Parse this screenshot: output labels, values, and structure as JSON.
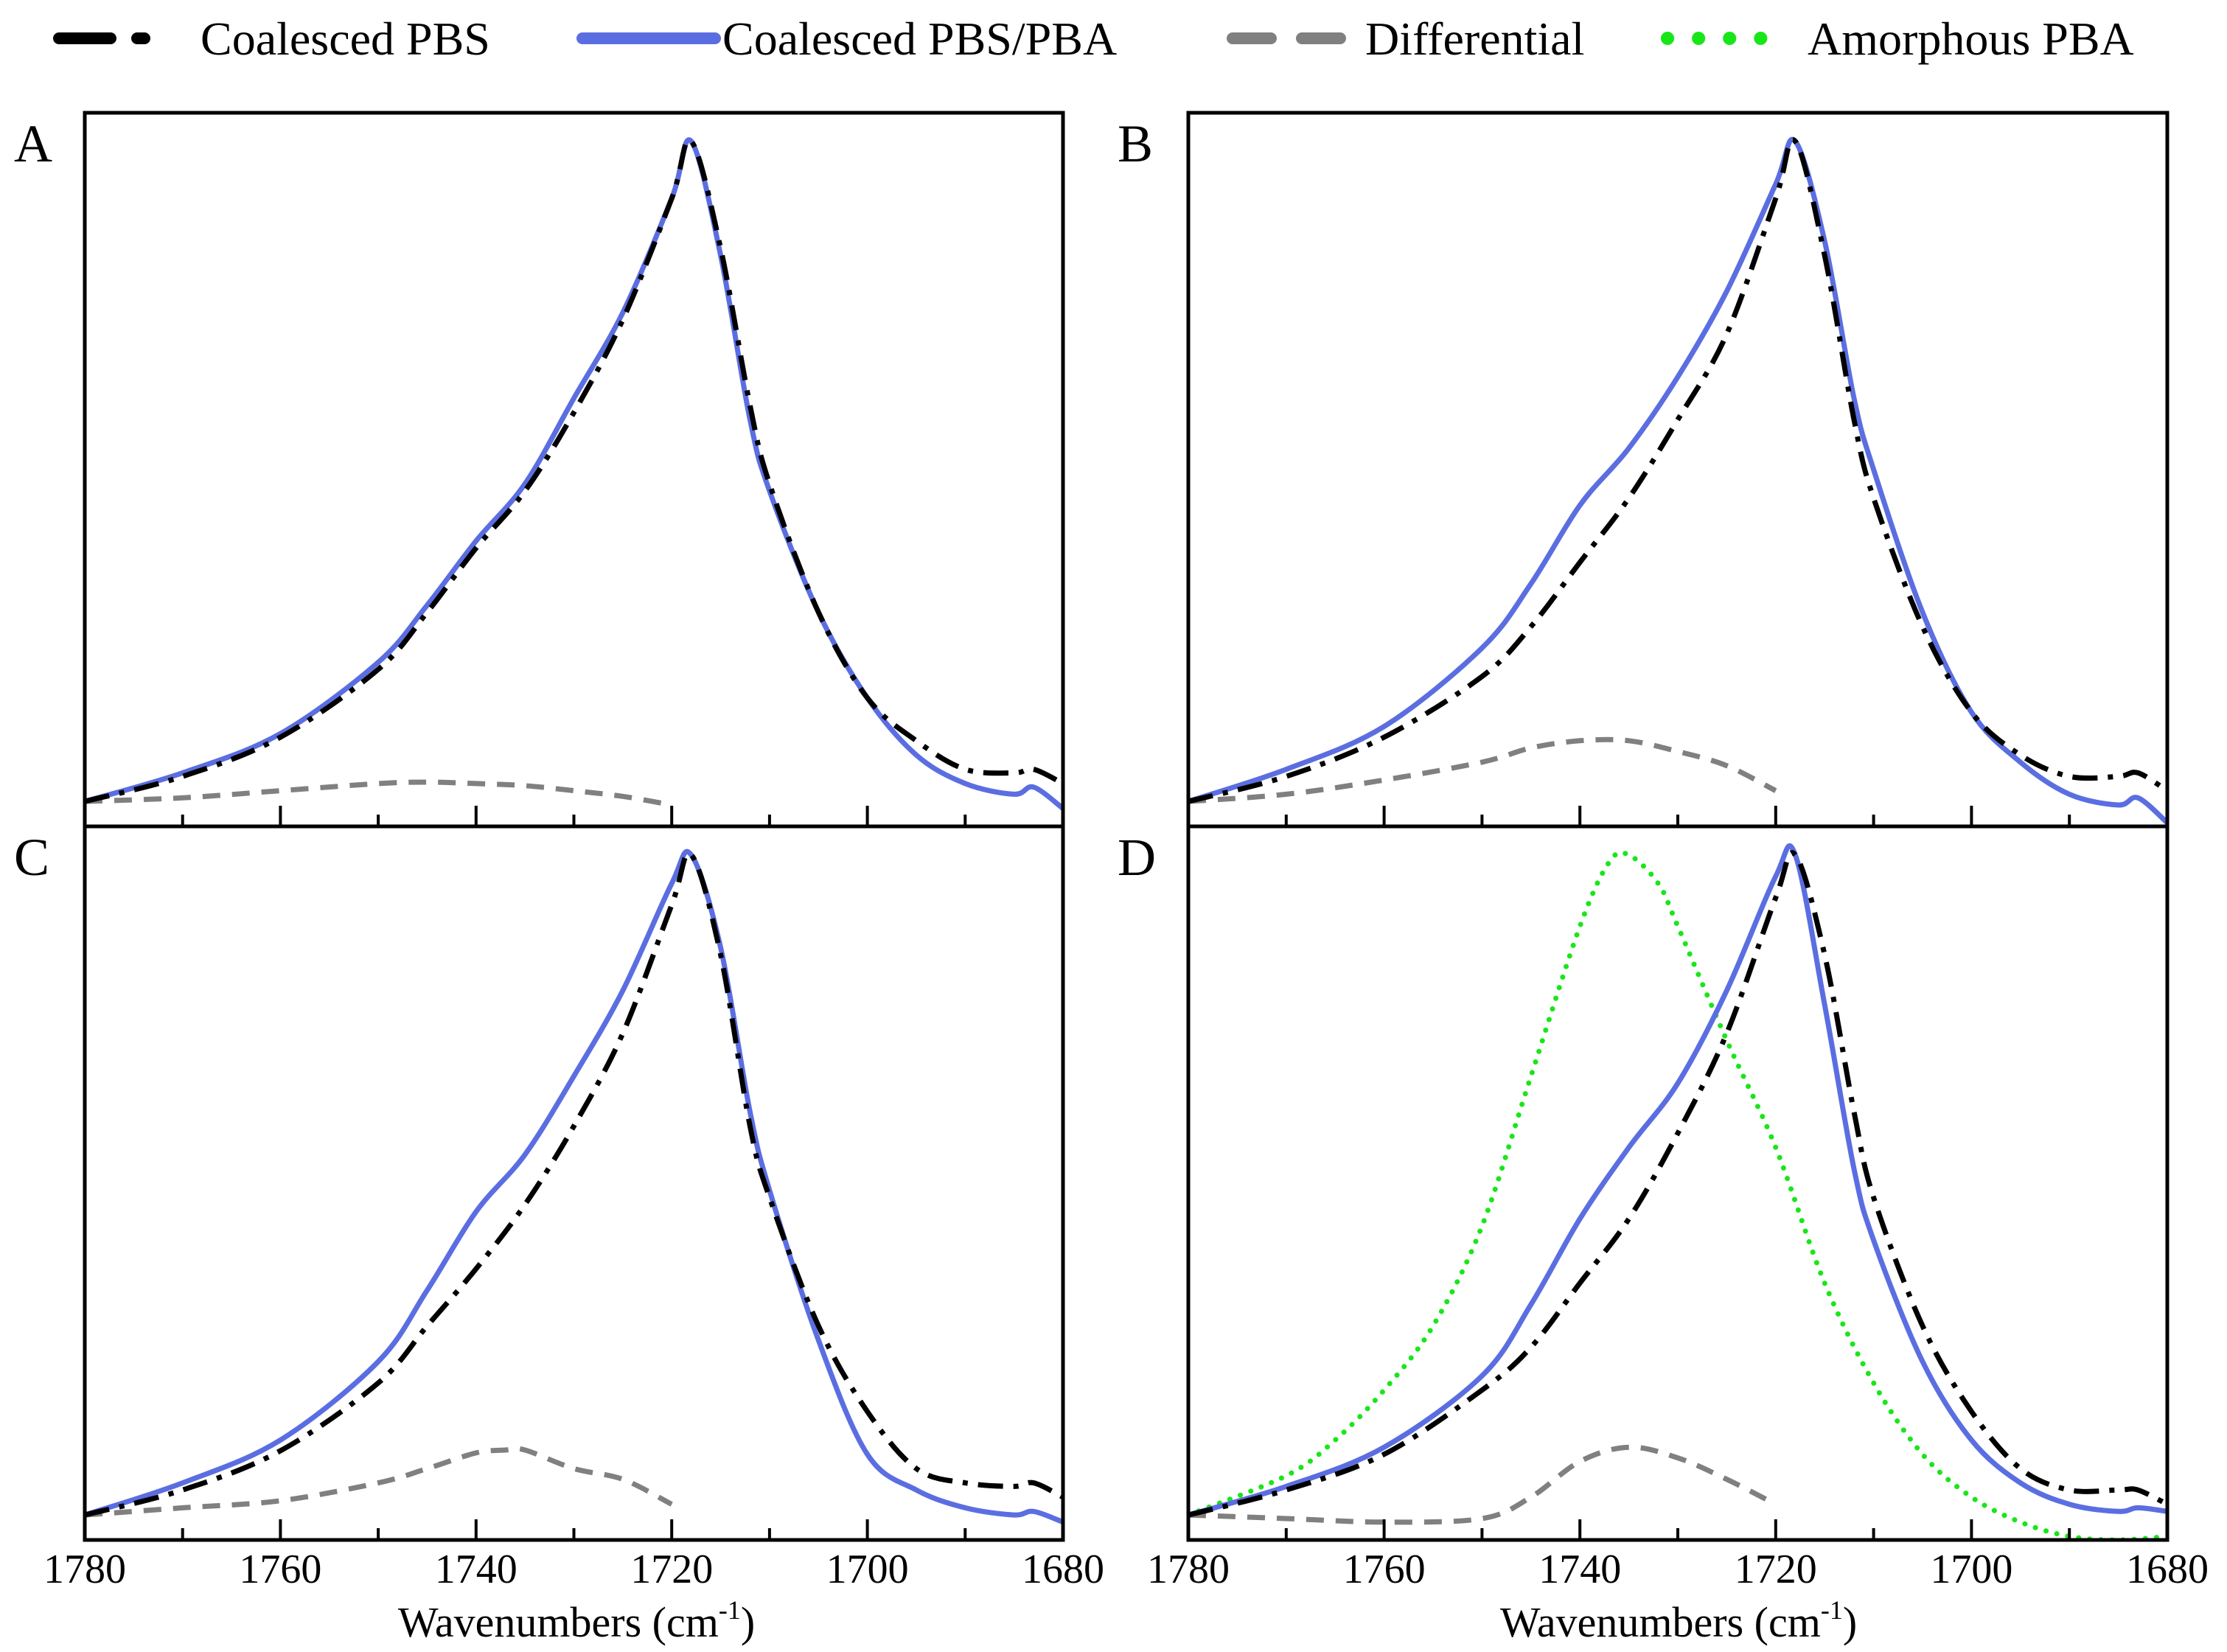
{
  "legend": [
    {
      "name": "Coalesced PBS",
      "color": "#000000",
      "style": "dashdot"
    },
    {
      "name": "Coalesced PBS/PBA",
      "color": "#5b6ee1",
      "style": "solid"
    },
    {
      "name": "Differential",
      "color": "#808080",
      "style": "dashed"
    },
    {
      "name": "Amorphous PBA",
      "color": "#19e619",
      "style": "dotted"
    }
  ],
  "axis": {
    "xlabel_main": "Wavenumbers (cm",
    "xlabel_sup": "-1",
    "xlabel_close": ")",
    "ticks": [
      "1780",
      "1760",
      "1740",
      "1720",
      "1700",
      "1680"
    ]
  },
  "chart_data": [
    {
      "panel": "A",
      "type": "line",
      "xlabel": "Wavenumbers (cm-1)",
      "ylabel": "",
      "xlim": [
        1780,
        1680
      ],
      "ylim": [
        0,
        1
      ],
      "series": [
        {
          "name": "Coalesced PBS",
          "x": [
            1780,
            1770,
            1760,
            1750,
            1745,
            1740,
            1735,
            1730,
            1725,
            1720,
            1718,
            1715,
            1712,
            1710,
            1705,
            1700,
            1695,
            1690,
            1685,
            1683,
            1680
          ],
          "y": [
            0.035,
            0.07,
            0.125,
            0.22,
            0.3,
            0.39,
            0.47,
            0.58,
            0.71,
            0.88,
            0.96,
            0.81,
            0.59,
            0.48,
            0.3,
            0.18,
            0.12,
            0.08,
            0.075,
            0.08,
            0.06
          ]
        },
        {
          "name": "Coalesced PBS/PBA",
          "x": [
            1780,
            1770,
            1760,
            1750,
            1745,
            1740,
            1735,
            1730,
            1725,
            1720,
            1718,
            1715,
            1712,
            1710,
            1705,
            1700,
            1695,
            1690,
            1685,
            1683,
            1680
          ],
          "y": [
            0.035,
            0.075,
            0.13,
            0.23,
            0.31,
            0.4,
            0.48,
            0.6,
            0.72,
            0.88,
            0.96,
            0.8,
            0.57,
            0.47,
            0.3,
            0.18,
            0.1,
            0.06,
            0.045,
            0.055,
            0.025
          ]
        },
        {
          "name": "Differential",
          "x": [
            1780,
            1770,
            1760,
            1750,
            1745,
            1740,
            1735,
            1730,
            1725,
            1720
          ],
          "y": [
            0.035,
            0.04,
            0.05,
            0.06,
            0.062,
            0.06,
            0.057,
            0.05,
            0.042,
            0.03
          ]
        }
      ]
    },
    {
      "panel": "B",
      "type": "line",
      "xlabel": "Wavenumbers (cm-1)",
      "ylabel": "",
      "xlim": [
        1780,
        1680
      ],
      "ylim": [
        0,
        1
      ],
      "series": [
        {
          "name": "Coalesced PBS",
          "x": [
            1780,
            1770,
            1760,
            1750,
            1745,
            1740,
            1735,
            1730,
            1725,
            1720,
            1718,
            1715,
            1712,
            1710,
            1705,
            1700,
            1695,
            1690,
            1685,
            1683,
            1680
          ],
          "y": [
            0.035,
            0.07,
            0.125,
            0.21,
            0.28,
            0.37,
            0.46,
            0.57,
            0.69,
            0.88,
            0.96,
            0.8,
            0.57,
            0.46,
            0.28,
            0.16,
            0.1,
            0.07,
            0.07,
            0.075,
            0.05
          ]
        },
        {
          "name": "Coalesced PBS/PBA",
          "x": [
            1780,
            1770,
            1760,
            1750,
            1745,
            1740,
            1735,
            1730,
            1725,
            1720,
            1718,
            1715,
            1712,
            1710,
            1705,
            1700,
            1695,
            1690,
            1685,
            1683,
            1680
          ],
          "y": [
            0.035,
            0.08,
            0.14,
            0.25,
            0.34,
            0.45,
            0.53,
            0.63,
            0.75,
            0.9,
            0.96,
            0.82,
            0.6,
            0.5,
            0.3,
            0.16,
            0.09,
            0.045,
            0.03,
            0.04,
            0.005
          ]
        },
        {
          "name": "Differential",
          "x": [
            1780,
            1770,
            1760,
            1750,
            1745,
            1740,
            1735,
            1730,
            1725,
            1720
          ],
          "y": [
            0.035,
            0.045,
            0.065,
            0.09,
            0.11,
            0.12,
            0.12,
            0.105,
            0.085,
            0.05
          ]
        }
      ]
    },
    {
      "panel": "C",
      "type": "line",
      "xlabel": "Wavenumbers (cm-1)",
      "ylabel": "",
      "xlim": [
        1780,
        1680
      ],
      "ylim": [
        0,
        1
      ],
      "series": [
        {
          "name": "Coalesced PBS",
          "x": [
            1780,
            1770,
            1760,
            1750,
            1745,
            1740,
            1735,
            1730,
            1725,
            1720,
            1718,
            1715,
            1712,
            1710,
            1705,
            1700,
            1695,
            1690,
            1685,
            1683,
            1680
          ],
          "y": [
            0.035,
            0.07,
            0.125,
            0.22,
            0.3,
            0.38,
            0.47,
            0.58,
            0.71,
            0.89,
            0.96,
            0.82,
            0.58,
            0.48,
            0.3,
            0.18,
            0.1,
            0.08,
            0.075,
            0.08,
            0.06
          ]
        },
        {
          "name": "Coalesced PBS/PBA",
          "x": [
            1780,
            1770,
            1760,
            1750,
            1745,
            1740,
            1735,
            1730,
            1725,
            1720,
            1718,
            1715,
            1712,
            1710,
            1705,
            1700,
            1695,
            1690,
            1685,
            1683,
            1680
          ],
          "y": [
            0.035,
            0.08,
            0.14,
            0.25,
            0.35,
            0.46,
            0.54,
            0.65,
            0.77,
            0.92,
            0.96,
            0.83,
            0.6,
            0.49,
            0.28,
            0.12,
            0.07,
            0.045,
            0.035,
            0.04,
            0.025
          ]
        },
        {
          "name": "Differential",
          "x": [
            1780,
            1770,
            1760,
            1750,
            1745,
            1740,
            1737,
            1735,
            1730,
            1725,
            1720
          ],
          "y": [
            0.035,
            0.045,
            0.055,
            0.08,
            0.1,
            0.122,
            0.126,
            0.126,
            0.1,
            0.085,
            0.05
          ]
        }
      ]
    },
    {
      "panel": "D",
      "type": "line",
      "xlabel": "Wavenumbers (cm-1)",
      "ylabel": "",
      "xlim": [
        1780,
        1680
      ],
      "ylim": [
        0,
        1
      ],
      "series": [
        {
          "name": "Coalesced PBS",
          "x": [
            1780,
            1770,
            1760,
            1750,
            1745,
            1740,
            1735,
            1730,
            1725,
            1720,
            1718,
            1715,
            1712,
            1710,
            1705,
            1700,
            1695,
            1690,
            1685,
            1683,
            1680
          ],
          "y": [
            0.035,
            0.07,
            0.12,
            0.21,
            0.27,
            0.36,
            0.45,
            0.57,
            0.71,
            0.9,
            0.96,
            0.82,
            0.6,
            0.48,
            0.3,
            0.18,
            0.1,
            0.07,
            0.07,
            0.07,
            0.05
          ]
        },
        {
          "name": "Coalesced PBS/PBA",
          "x": [
            1780,
            1770,
            1760,
            1750,
            1745,
            1740,
            1735,
            1730,
            1725,
            1720,
            1718,
            1715,
            1712,
            1710,
            1705,
            1700,
            1695,
            1690,
            1685,
            1683,
            1680
          ],
          "y": [
            0.035,
            0.075,
            0.13,
            0.23,
            0.33,
            0.45,
            0.55,
            0.64,
            0.77,
            0.93,
            0.96,
            0.75,
            0.52,
            0.42,
            0.25,
            0.14,
            0.08,
            0.05,
            0.04,
            0.045,
            0.04
          ]
        },
        {
          "name": "Differential",
          "x": [
            1780,
            1770,
            1760,
            1750,
            1745,
            1740,
            1735,
            1730,
            1725,
            1720
          ],
          "y": [
            0.035,
            0.03,
            0.025,
            0.03,
            0.06,
            0.11,
            0.13,
            0.115,
            0.085,
            0.05
          ]
        },
        {
          "name": "Amorphous PBA",
          "x": [
            1780,
            1770,
            1765,
            1760,
            1755,
            1750,
            1745,
            1740,
            1737,
            1735,
            1732,
            1730,
            1725,
            1720,
            1715,
            1710,
            1705,
            1700,
            1695,
            1690,
            1685,
            1680
          ],
          "y": [
            0.035,
            0.09,
            0.14,
            0.21,
            0.3,
            0.44,
            0.65,
            0.86,
            0.95,
            0.96,
            0.92,
            0.86,
            0.7,
            0.55,
            0.36,
            0.22,
            0.12,
            0.06,
            0.025,
            0.005,
            0.0,
            0.005
          ]
        }
      ]
    }
  ]
}
